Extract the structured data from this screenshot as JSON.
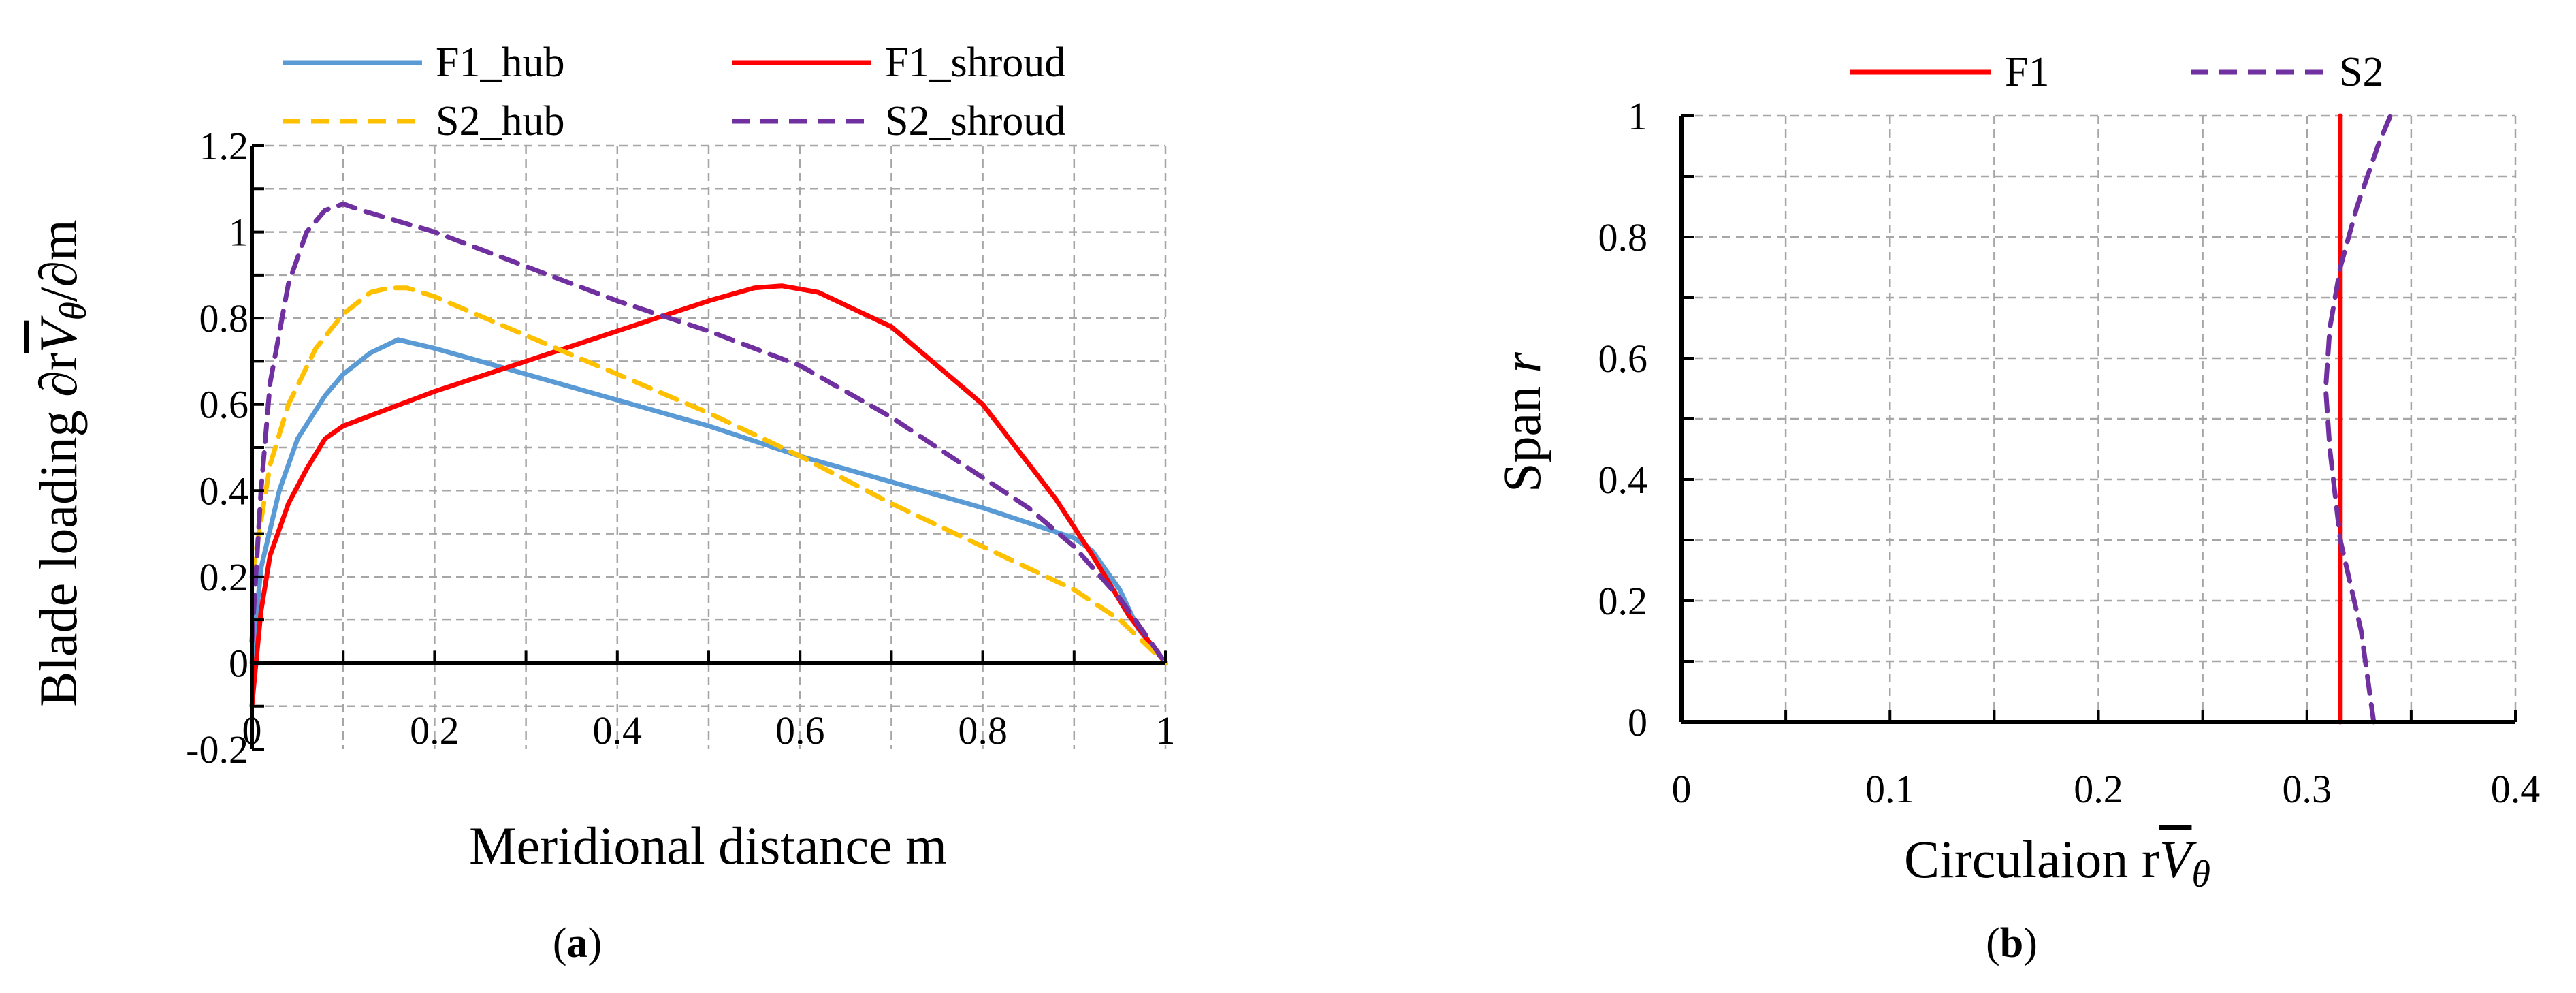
{
  "chart_data": [
    {
      "type": "line",
      "panel_label": "a",
      "xlabel": "Meridional distance m",
      "ylabel": "Blade loading ∂rV̄θ/∂m",
      "ylabel_parts": {
        "prefix": "Blade loading ∂r",
        "v": "V",
        "sub": "θ",
        "suffix": "/∂m"
      },
      "xlim": [
        0,
        1
      ],
      "ylim": [
        -0.2,
        1.2
      ],
      "x_ticks": [
        "0",
        "0.2",
        "0.4",
        "0.6",
        "0.8",
        "1"
      ],
      "x_tick_values": [
        0,
        0.2,
        0.4,
        0.6,
        0.8,
        1
      ],
      "y_ticks": [
        "-0.2",
        "0",
        "0.2",
        "0.4",
        "0.6",
        "0.8",
        "1",
        "1.2"
      ],
      "y_tick_values": [
        -0.2,
        0,
        0.2,
        0.4,
        0.6,
        0.8,
        1,
        1.2
      ],
      "grid": true,
      "legend": "top",
      "series": [
        {
          "name": "F1_hub",
          "color": "#5b9bd5",
          "dash": "solid",
          "x": [
            0,
            0.01,
            0.03,
            0.05,
            0.08,
            0.1,
            0.13,
            0.16,
            0.2,
            0.3,
            0.4,
            0.5,
            0.6,
            0.7,
            0.8,
            0.9,
            0.92,
            0.95,
            0.97,
            1.0
          ],
          "y": [
            0,
            0.22,
            0.4,
            0.52,
            0.62,
            0.67,
            0.72,
            0.75,
            0.73,
            0.67,
            0.61,
            0.55,
            0.48,
            0.42,
            0.36,
            0.29,
            0.26,
            0.17,
            0.08,
            0
          ]
        },
        {
          "name": "F1_shroud",
          "color": "#ff0000",
          "dash": "solid",
          "x": [
            0,
            0.01,
            0.02,
            0.04,
            0.06,
            0.08,
            0.1,
            0.15,
            0.2,
            0.3,
            0.4,
            0.5,
            0.55,
            0.58,
            0.62,
            0.7,
            0.8,
            0.88,
            0.92,
            0.96,
            1.0
          ],
          "y": [
            -0.1,
            0.12,
            0.25,
            0.37,
            0.45,
            0.52,
            0.55,
            0.59,
            0.63,
            0.7,
            0.77,
            0.84,
            0.87,
            0.875,
            0.86,
            0.78,
            0.6,
            0.38,
            0.25,
            0.11,
            0
          ]
        },
        {
          "name": "S2_hub",
          "color": "#ffc000",
          "dash": "dashed",
          "x": [
            0,
            0.02,
            0.04,
            0.07,
            0.1,
            0.13,
            0.15,
            0.17,
            0.2,
            0.3,
            0.4,
            0.5,
            0.6,
            0.7,
            0.8,
            0.9,
            0.95,
            1.0
          ],
          "y": [
            0.2,
            0.46,
            0.6,
            0.73,
            0.81,
            0.86,
            0.87,
            0.87,
            0.85,
            0.76,
            0.67,
            0.58,
            0.48,
            0.37,
            0.27,
            0.17,
            0.1,
            0
          ]
        },
        {
          "name": "S2_shroud",
          "color": "#7030a0",
          "dash": "dashed",
          "x": [
            0,
            0.01,
            0.02,
            0.04,
            0.06,
            0.08,
            0.1,
            0.12,
            0.2,
            0.3,
            0.4,
            0.5,
            0.6,
            0.7,
            0.8,
            0.85,
            0.9,
            0.95,
            1.0
          ],
          "y": [
            0.05,
            0.4,
            0.65,
            0.88,
            1.0,
            1.05,
            1.065,
            1.05,
            1.0,
            0.92,
            0.84,
            0.77,
            0.69,
            0.57,
            0.43,
            0.36,
            0.27,
            0.15,
            0
          ]
        }
      ]
    },
    {
      "type": "line",
      "panel_label": "b",
      "xlabel": "Circulaion rV̄θ",
      "xlabel_parts": {
        "prefix": "Circulaion r",
        "v": "V",
        "sub": "θ"
      },
      "ylabel": "Span r",
      "ylabel_parts": {
        "prefix": "Span ",
        "var": "r"
      },
      "xlim": [
        0,
        0.4
      ],
      "ylim": [
        0,
        1
      ],
      "x_ticks": [
        "0",
        "0.1",
        "0.2",
        "0.3",
        "0.4"
      ],
      "x_tick_values": [
        0,
        0.1,
        0.2,
        0.3,
        0.4
      ],
      "y_ticks": [
        "0",
        "0.2",
        "0.4",
        "0.6",
        "0.8",
        "1"
      ],
      "y_tick_values": [
        0,
        0.2,
        0.4,
        0.6,
        0.8,
        1
      ],
      "grid": true,
      "legend": "top",
      "series": [
        {
          "name": "F1",
          "color": "#ff0000",
          "dash": "solid",
          "x": [
            0.316,
            0.316
          ],
          "y": [
            0,
            1
          ]
        },
        {
          "name": "S2",
          "color": "#7030a0",
          "dash": "dashed",
          "x": [
            0.332,
            0.326,
            0.316,
            0.311,
            0.309,
            0.311,
            0.316,
            0.324,
            0.334,
            0.34
          ],
          "y": [
            0,
            0.15,
            0.3,
            0.45,
            0.55,
            0.65,
            0.75,
            0.85,
            0.95,
            1.0
          ]
        }
      ]
    }
  ]
}
